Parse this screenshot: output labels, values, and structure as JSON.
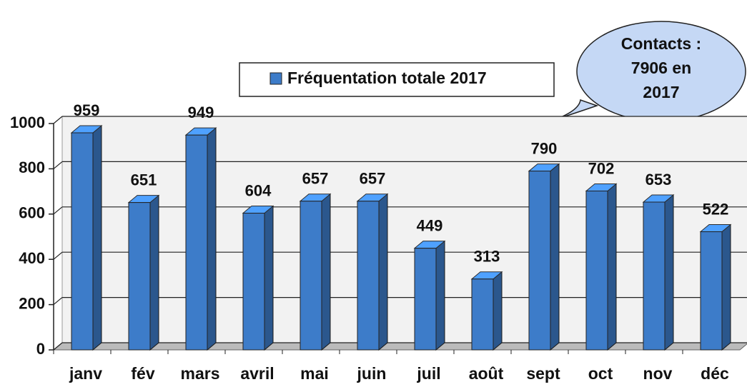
{
  "chart_data": {
    "type": "bar",
    "categories": [
      "janv",
      "fév",
      "mars",
      "avril",
      "mai",
      "juin",
      "juil",
      "août",
      "sept",
      "oct",
      "nov",
      "déc"
    ],
    "series": [
      {
        "name": "Fréquentation totale 2017",
        "color": "#3d7cc9",
        "values": [
          959,
          651,
          949,
          604,
          657,
          657,
          449,
          313,
          790,
          702,
          653,
          522
        ]
      }
    ],
    "ylim": [
      0,
      1000
    ],
    "yticks": [
      0,
      200,
      400,
      600,
      800,
      1000
    ],
    "grid": true,
    "annotation": [
      "Contacts :",
      "7906 en",
      "2017"
    ]
  }
}
